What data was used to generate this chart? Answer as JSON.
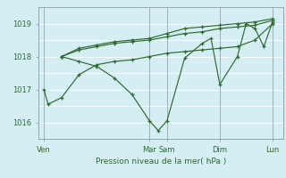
{
  "bg_color": "#d4eef4",
  "plot_bg_color": "#d4eef4",
  "grid_color": "#ffffff",
  "line_color": "#2d6a2d",
  "vline_color": "#8899aa",
  "xlabel": "Pression niveau de la mer( hPa )",
  "ylim": [
    1015.5,
    1019.5
  ],
  "yticks": [
    1016,
    1017,
    1018,
    1019
  ],
  "xtick_labels": [
    "Ven",
    "",
    "Mar",
    "Sam",
    "",
    "Dim",
    "",
    "Lun"
  ],
  "xtick_positions": [
    0.0,
    1.5,
    3.0,
    3.5,
    4.25,
    5.0,
    5.75,
    6.5
  ],
  "vline_positions": [
    0.0,
    3.0,
    3.5,
    5.0,
    6.5
  ],
  "vline_labels": [
    "Ven",
    "Mar",
    "Sam",
    "Dim",
    "Lun"
  ],
  "series": [
    {
      "x": [
        0.0,
        0.12,
        0.5,
        1.0,
        1.5,
        2.0,
        2.5,
        3.0,
        3.5,
        4.0,
        4.5,
        5.0,
        5.5,
        6.0,
        6.5
      ],
      "y": [
        1017.0,
        1016.55,
        1016.75,
        1017.45,
        1017.75,
        1017.85,
        1017.9,
        1018.0,
        1018.1,
        1018.15,
        1018.2,
        1018.25,
        1018.3,
        1018.5,
        1019.0
      ]
    },
    {
      "x": [
        0.5,
        1.0,
        1.5,
        2.0,
        2.5,
        3.0,
        3.25,
        3.5,
        4.0,
        4.5,
        4.75,
        5.0,
        5.5,
        5.75,
        6.0,
        6.25,
        6.5
      ],
      "y": [
        1018.0,
        1017.85,
        1017.7,
        1017.35,
        1016.85,
        1016.05,
        1015.75,
        1016.05,
        1017.95,
        1018.4,
        1018.55,
        1017.15,
        1018.0,
        1019.0,
        1018.85,
        1018.3,
        1019.05
      ]
    },
    {
      "x": [
        0.5,
        1.0,
        1.5,
        2.0,
        2.5,
        3.0,
        3.5,
        4.0,
        4.5,
        5.0,
        5.5,
        6.0,
        6.5
      ],
      "y": [
        1018.0,
        1018.2,
        1018.3,
        1018.4,
        1018.45,
        1018.5,
        1018.6,
        1018.7,
        1018.75,
        1018.85,
        1018.9,
        1018.95,
        1019.1
      ]
    },
    {
      "x": [
        0.5,
        1.0,
        1.5,
        2.0,
        2.5,
        3.0,
        3.5,
        4.0,
        4.5,
        5.0,
        5.5,
        6.0,
        6.5
      ],
      "y": [
        1018.0,
        1018.25,
        1018.35,
        1018.45,
        1018.5,
        1018.55,
        1018.7,
        1018.85,
        1018.9,
        1018.95,
        1019.0,
        1019.05,
        1019.15
      ]
    }
  ]
}
